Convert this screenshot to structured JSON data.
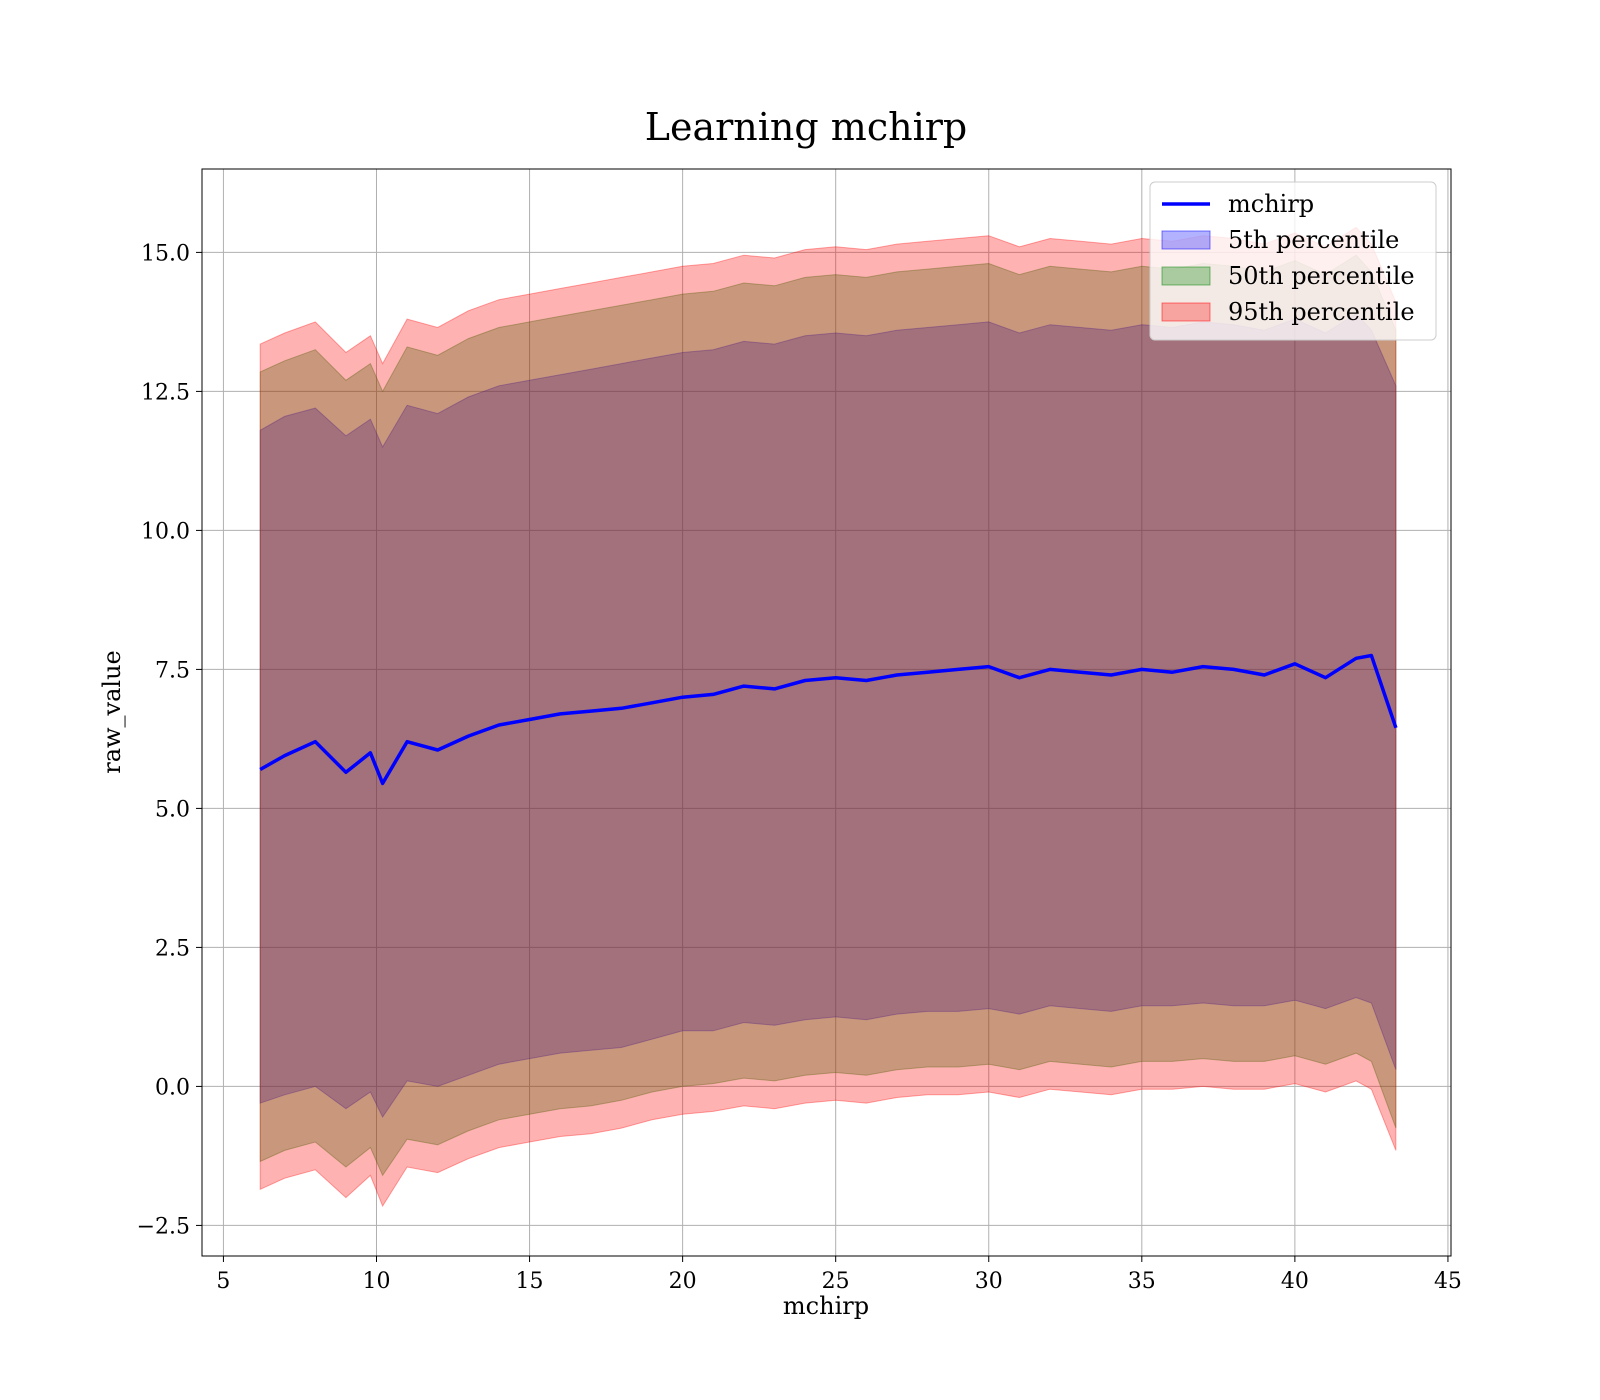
{
  "chart_data": {
    "type": "area",
    "title": "Learning mchirp",
    "xlabel": "mchirp",
    "ylabel": "raw_value",
    "xlim": [
      4.3,
      45.1
    ],
    "ylim": [
      -3.05,
      16.5
    ],
    "xticks": [
      5,
      10,
      15,
      20,
      25,
      30,
      35,
      40,
      45
    ],
    "yticks": [
      -2.5,
      0.0,
      2.5,
      5.0,
      7.5,
      10.0,
      12.5,
      15.0
    ],
    "ytick_labels": [
      "−2.5",
      "0.0",
      "2.5",
      "5.0",
      "7.5",
      "10.0",
      "12.5",
      "15.0"
    ],
    "grid": true,
    "legend_position": "top-right",
    "x": [
      6.2,
      7.0,
      8.0,
      9.0,
      9.8,
      10.2,
      11.0,
      12.0,
      13.0,
      14.0,
      15.0,
      16.0,
      17.0,
      18.0,
      19.0,
      20.0,
      21.0,
      22.0,
      23.0,
      24.0,
      25.0,
      26.0,
      27.0,
      28.0,
      29.0,
      30.0,
      31.0,
      32.0,
      33.0,
      34.0,
      35.0,
      36.0,
      37.0,
      38.0,
      39.0,
      40.0,
      41.0,
      42.0,
      42.5,
      43.3
    ],
    "series": [
      {
        "name": "mchirp",
        "kind": "line",
        "color": "#0000ff",
        "values": [
          5.7,
          5.95,
          6.2,
          5.65,
          6.0,
          5.45,
          6.2,
          6.05,
          6.3,
          6.5,
          6.6,
          6.7,
          6.75,
          6.8,
          6.9,
          7.0,
          7.05,
          7.2,
          7.15,
          7.3,
          7.35,
          7.3,
          7.4,
          7.45,
          7.5,
          7.55,
          7.35,
          7.5,
          7.45,
          7.4,
          7.5,
          7.45,
          7.55,
          7.5,
          7.4,
          7.6,
          7.35,
          7.7,
          7.75,
          6.45
        ]
      },
      {
        "name": "5th percentile",
        "kind": "band",
        "color": "#0000ff",
        "lower": [
          -0.3,
          -0.15,
          0.0,
          -0.4,
          -0.1,
          -0.55,
          0.1,
          0.0,
          0.2,
          0.4,
          0.5,
          0.6,
          0.65,
          0.7,
          0.85,
          1.0,
          1.0,
          1.15,
          1.1,
          1.2,
          1.25,
          1.2,
          1.3,
          1.35,
          1.35,
          1.4,
          1.3,
          1.45,
          1.4,
          1.35,
          1.45,
          1.45,
          1.5,
          1.45,
          1.45,
          1.55,
          1.4,
          1.6,
          1.5,
          0.3
        ],
        "upper": [
          11.8,
          12.05,
          12.2,
          11.7,
          12.0,
          11.5,
          12.25,
          12.1,
          12.4,
          12.6,
          12.7,
          12.8,
          12.9,
          13.0,
          13.1,
          13.2,
          13.25,
          13.4,
          13.35,
          13.5,
          13.55,
          13.5,
          13.6,
          13.65,
          13.7,
          13.75,
          13.55,
          13.7,
          13.65,
          13.6,
          13.7,
          13.65,
          13.75,
          13.7,
          13.6,
          13.8,
          13.55,
          13.9,
          13.6,
          12.6
        ]
      },
      {
        "name": "50th percentile",
        "kind": "band",
        "color": "#008000",
        "lower": [
          -1.35,
          -1.15,
          -1.0,
          -1.45,
          -1.1,
          -1.6,
          -0.95,
          -1.05,
          -0.8,
          -0.6,
          -0.5,
          -0.4,
          -0.35,
          -0.25,
          -0.1,
          0.0,
          0.05,
          0.15,
          0.1,
          0.2,
          0.25,
          0.2,
          0.3,
          0.35,
          0.35,
          0.4,
          0.3,
          0.45,
          0.4,
          0.35,
          0.45,
          0.45,
          0.5,
          0.45,
          0.45,
          0.55,
          0.4,
          0.6,
          0.45,
          -0.75
        ],
        "upper": [
          12.85,
          13.05,
          13.25,
          12.7,
          13.0,
          12.5,
          13.3,
          13.15,
          13.45,
          13.65,
          13.75,
          13.85,
          13.95,
          14.05,
          14.15,
          14.25,
          14.3,
          14.45,
          14.4,
          14.55,
          14.6,
          14.55,
          14.65,
          14.7,
          14.75,
          14.8,
          14.6,
          14.75,
          14.7,
          14.65,
          14.75,
          14.7,
          14.8,
          14.75,
          14.65,
          14.85,
          14.6,
          14.95,
          14.65,
          13.6
        ]
      },
      {
        "name": "95th percentile",
        "kind": "band",
        "color": "#ff0000",
        "lower": [
          -1.85,
          -1.65,
          -1.5,
          -2.0,
          -1.6,
          -2.15,
          -1.45,
          -1.55,
          -1.3,
          -1.1,
          -1.0,
          -0.9,
          -0.85,
          -0.75,
          -0.6,
          -0.5,
          -0.45,
          -0.35,
          -0.4,
          -0.3,
          -0.25,
          -0.3,
          -0.2,
          -0.15,
          -0.15,
          -0.1,
          -0.2,
          -0.05,
          -0.1,
          -0.15,
          -0.05,
          -0.05,
          0.0,
          -0.05,
          -0.05,
          0.05,
          -0.1,
          0.1,
          -0.05,
          -1.15
        ],
        "upper": [
          13.35,
          13.55,
          13.75,
          13.2,
          13.5,
          13.0,
          13.8,
          13.65,
          13.95,
          14.15,
          14.25,
          14.35,
          14.45,
          14.55,
          14.65,
          14.75,
          14.8,
          14.95,
          14.9,
          15.05,
          15.1,
          15.05,
          15.15,
          15.2,
          15.25,
          15.3,
          15.1,
          15.25,
          15.2,
          15.15,
          15.25,
          15.2,
          15.3,
          15.25,
          15.15,
          15.35,
          15.1,
          15.45,
          15.15,
          14.1
        ]
      }
    ]
  }
}
